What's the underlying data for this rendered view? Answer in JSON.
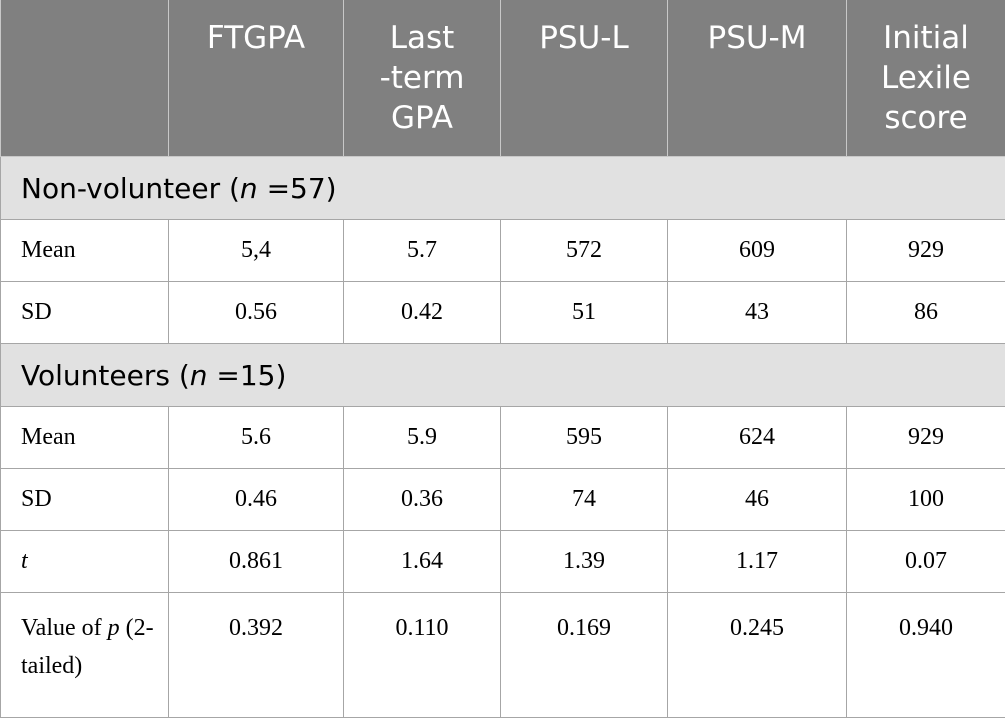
{
  "table": {
    "header": [
      [
        "FTGPA"
      ],
      [
        "Last",
        "-term",
        "GPA"
      ],
      [
        "PSU-L"
      ],
      [
        "PSU-M"
      ],
      [
        "Initial",
        "Lexile",
        "score"
      ]
    ],
    "sections": [
      {
        "label": [
          {
            "text": "Non-volunteer ("
          },
          {
            "text": "n",
            "italic": true
          },
          {
            "text": " =57)"
          }
        ],
        "rows": [
          {
            "label": [
              {
                "text": "Mean"
              }
            ],
            "values": [
              "5,4",
              "5.7",
              "572",
              "609",
              "929"
            ]
          },
          {
            "label": [
              {
                "text": "SD"
              }
            ],
            "values": [
              "0.56",
              "0.42",
              "51",
              "43",
              "86"
            ]
          }
        ]
      },
      {
        "label": [
          {
            "text": "Volunteers ("
          },
          {
            "text": "n",
            "italic": true
          },
          {
            "text": " =15)"
          }
        ],
        "rows": [
          {
            "label": [
              {
                "text": "Mean"
              }
            ],
            "values": [
              "5.6",
              "5.9",
              "595",
              "624",
              "929"
            ]
          },
          {
            "label": [
              {
                "text": "SD"
              }
            ],
            "values": [
              "0.46",
              "0.36",
              "74",
              "46",
              "100"
            ]
          },
          {
            "label": [
              {
                "text": "t",
                "italic": true
              }
            ],
            "values": [
              "0.861",
              "1.64",
              "1.39",
              "1.17",
              "0.07"
            ]
          },
          {
            "label": [
              {
                "text": "Value of "
              },
              {
                "text": "p",
                "italic": true
              },
              {
                "text": " (2-tailed)"
              }
            ],
            "values": [
              "0.392",
              "0.110",
              "0.169",
              "0.245",
              "0.940"
            ]
          }
        ]
      }
    ]
  }
}
